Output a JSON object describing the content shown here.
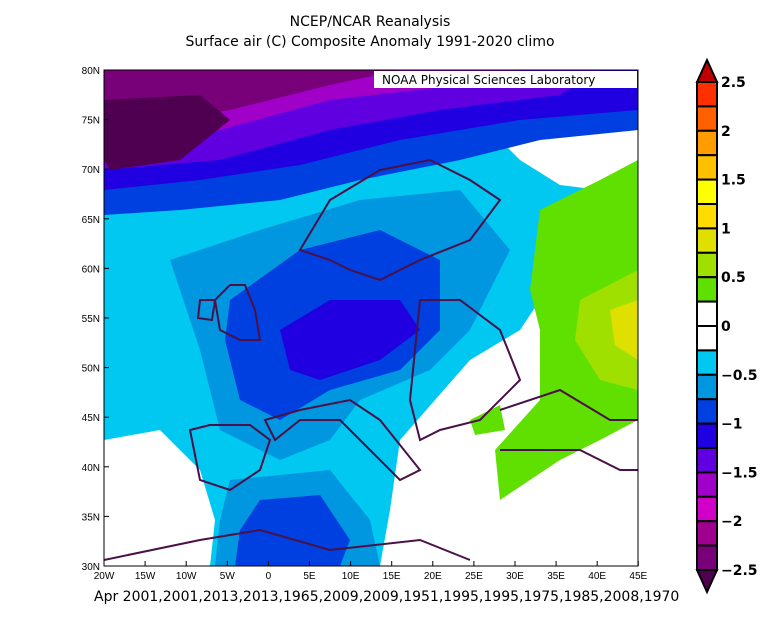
{
  "title": "NCEP/NCAR Reanalysis",
  "subtitle": "Surface air (C) Composite Anomaly 1991-2020 climo",
  "credit": "NOAA Physical Sciences Laboratory",
  "footer": "Apr 2001,2001,2013,2013,1965,2009,2009,1951,1995,1995,1975,1985,2008,1970",
  "lat_labels": [
    "30N",
    "35N",
    "40N",
    "45N",
    "50N",
    "55N",
    "60N",
    "65N",
    "70N",
    "75N",
    "80N"
  ],
  "lon_labels": [
    "20W",
    "15W",
    "10W",
    "5W",
    "0",
    "5E",
    "10E",
    "15E",
    "20E",
    "25E",
    "30E",
    "35E",
    "40E",
    "45E"
  ],
  "colorbar": {
    "labels": [
      "2.5",
      "2",
      "1.5",
      "1",
      "0.5",
      "0",
      "-0.5",
      "-1",
      "-1.5",
      "-2",
      "-2.5"
    ],
    "colors": [
      "#ff3000",
      "#ff6000",
      "#ff9c00",
      "#ffc000",
      "#ffff00",
      "#ffdc00",
      "#e0e000",
      "#a0e000",
      "#60e000",
      "#ffffff",
      "#ffffff",
      "#00c8f0",
      "#0096e0",
      "#0040e0",
      "#2000e0",
      "#6000e0",
      "#a000c8",
      "#d000c8",
      "#a00090",
      "#780078"
    ],
    "top_color": "#c00000",
    "bottom_color": "#500050"
  }
}
